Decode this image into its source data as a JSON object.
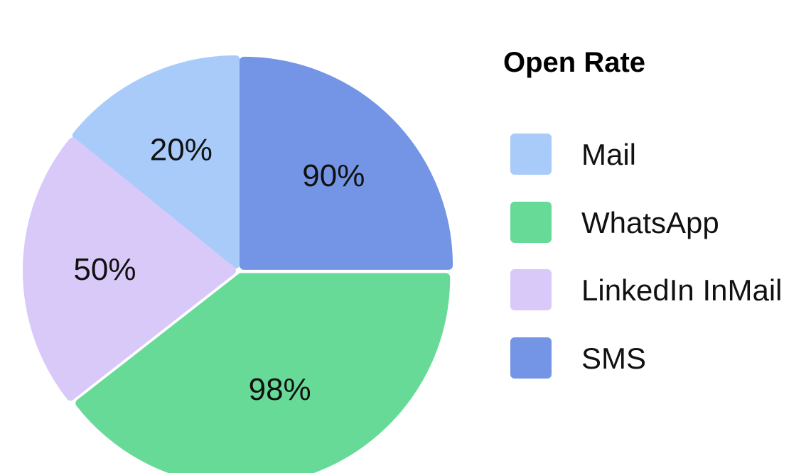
{
  "chart_data": {
    "type": "pie",
    "legend_title": "Open Rate",
    "legend_position": "right",
    "categories": [
      "Mail",
      "WhatsApp",
      "LinkedIn InMail",
      "SMS"
    ],
    "values": [
      20,
      98,
      50,
      90
    ],
    "labels": [
      "20%",
      "98%",
      "50%",
      "90%"
    ],
    "colors": [
      "#a8cbfa",
      "#67da98",
      "#d9c9f9",
      "#7495e6"
    ]
  }
}
